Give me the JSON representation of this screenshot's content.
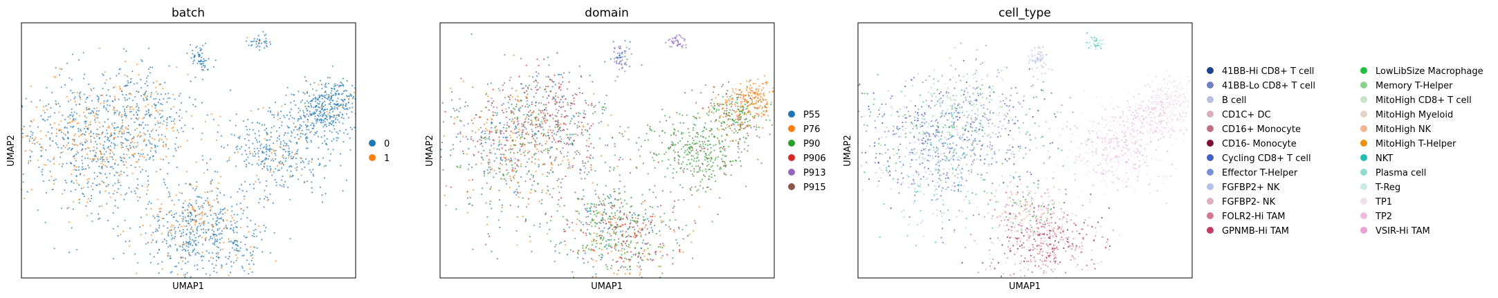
{
  "chart_data": [
    {
      "type": "scatter",
      "title": "batch",
      "xlabel": "UMAP1",
      "ylabel": "UMAP2",
      "grid": false,
      "legend_position": "right",
      "legend": [
        {
          "label": "0",
          "color": "#1f77b4"
        },
        {
          "label": "1",
          "color": "#ff7f0e"
        }
      ]
    },
    {
      "type": "scatter",
      "title": "domain",
      "xlabel": "UMAP1",
      "ylabel": "UMAP2",
      "grid": false,
      "legend_position": "right",
      "legend": [
        {
          "label": "P55",
          "color": "#1f77b4"
        },
        {
          "label": "P76",
          "color": "#ff7f0e"
        },
        {
          "label": "P90",
          "color": "#2ca02c"
        },
        {
          "label": "P906",
          "color": "#d62728"
        },
        {
          "label": "P913",
          "color": "#9467bd"
        },
        {
          "label": "P915",
          "color": "#8c564b"
        }
      ]
    },
    {
      "type": "scatter",
      "title": "cell_type",
      "xlabel": "UMAP1",
      "ylabel": "UMAP2",
      "grid": false,
      "legend_position": "right",
      "legend": [
        {
          "label": "41BB-Hi CD8+ T cell",
          "color": "#1f3f8f"
        },
        {
          "label": "41BB-Lo CD8+ T cell",
          "color": "#7080c0"
        },
        {
          "label": "B cell",
          "color": "#b8bfdf"
        },
        {
          "label": "CD1C+ DC",
          "color": "#d8b0bc"
        },
        {
          "label": "CD16+ Monocyte",
          "color": "#c07080"
        },
        {
          "label": "CD16- Monocyte",
          "color": "#7b1030"
        },
        {
          "label": "Cycling CD8+ T cell",
          "color": "#4462c4"
        },
        {
          "label": "Effector T-Helper",
          "color": "#7c92d4"
        },
        {
          "label": "FGFBP2+ NK",
          "color": "#b8c0e8"
        },
        {
          "label": "FGFBP2- NK",
          "color": "#e0b0bc"
        },
        {
          "label": "FOLR2-Hi TAM",
          "color": "#d87890"
        },
        {
          "label": "GPNMB-Hi TAM",
          "color": "#c43c64"
        },
        {
          "label": "LowLibSize Macrophage",
          "color": "#22c040"
        },
        {
          "label": "Memory T-Helper",
          "color": "#8cd48c"
        },
        {
          "label": "MitoHigh CD8+ T cell",
          "color": "#c4e4c8"
        },
        {
          "label": "MitoHigh Myeloid",
          "color": "#e8d4c4"
        },
        {
          "label": "MitoHigh NK",
          "color": "#f0b490"
        },
        {
          "label": "MitoHigh T-Helper",
          "color": "#f0900c"
        },
        {
          "label": "NKT",
          "color": "#20c0b0"
        },
        {
          "label": "Plasma cell",
          "color": "#90dcd0"
        },
        {
          "label": "T-Reg",
          "color": "#c8ece4"
        },
        {
          "label": "TP1",
          "color": "#f0e0ec"
        },
        {
          "label": "TP2",
          "color": "#f4b8dc"
        },
        {
          "label": "VSIR-Hi TAM",
          "color": "#e8a4d4"
        }
      ]
    }
  ]
}
